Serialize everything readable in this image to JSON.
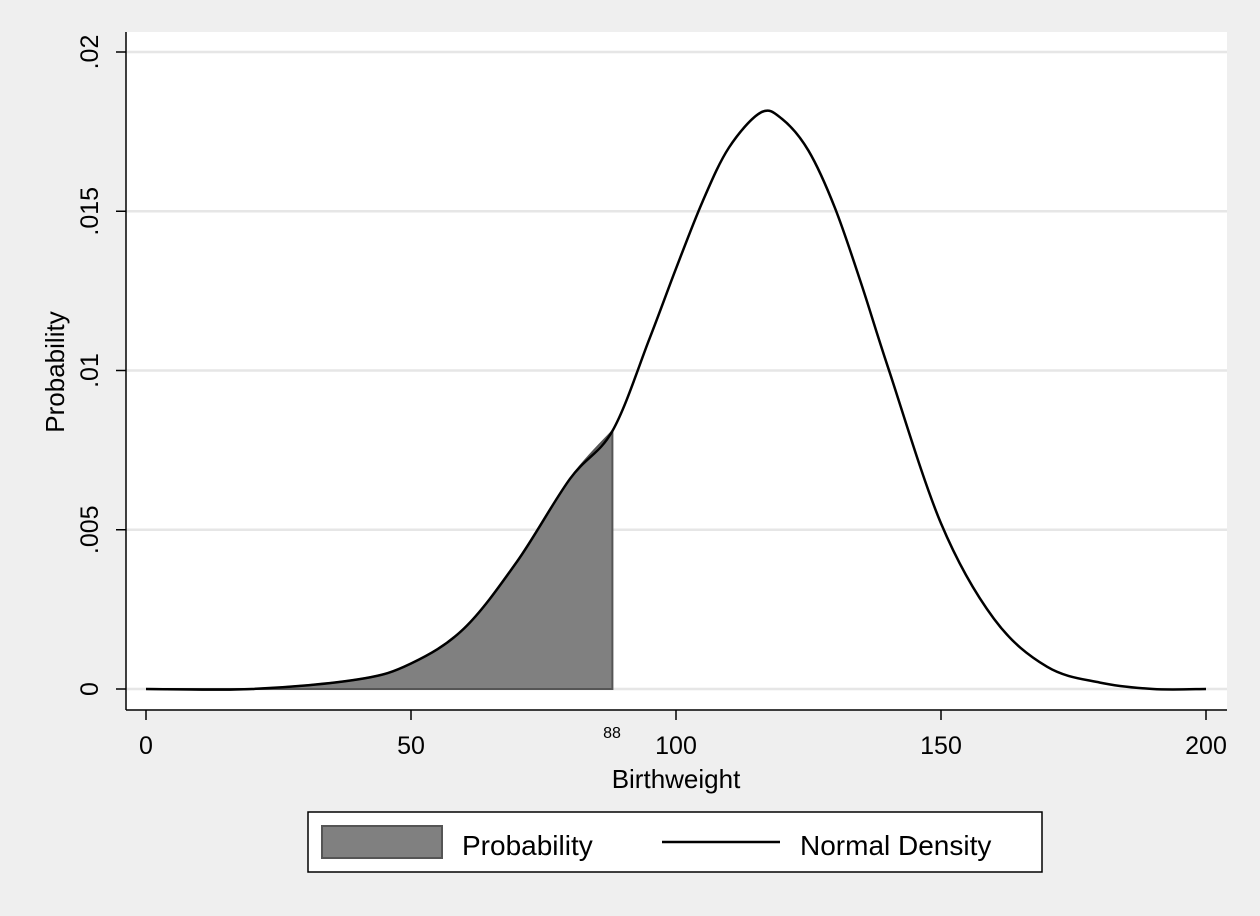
{
  "chart_data": {
    "type": "area",
    "title": "",
    "xlabel": "Birthweight",
    "ylabel": "Probability",
    "xlim": [
      0,
      200
    ],
    "ylim": [
      0,
      0.02
    ],
    "xticks": [
      0,
      50,
      100,
      150,
      200
    ],
    "xtick_labels": [
      "0",
      "50",
      "100",
      "150",
      "200"
    ],
    "yticks": [
      0,
      0.005,
      0.01,
      0.015,
      0.02
    ],
    "ytick_labels": [
      "0",
      ".005",
      ".01",
      ".015",
      ".02"
    ],
    "grid": "horizontal",
    "series": [
      {
        "name": "Probability",
        "kind": "shaded-area",
        "color": "#808080",
        "x_from": 0,
        "x_to": 88
      },
      {
        "name": "Normal Density",
        "kind": "line",
        "color": "#000000",
        "x": [
          0,
          20,
          40,
          50,
          60,
          70,
          80,
          88,
          95,
          100,
          105,
          110,
          116,
          120,
          125,
          130,
          135,
          140,
          150,
          160,
          170,
          180,
          190,
          200
        ],
        "y": [
          0.0,
          0.0,
          0.0003,
          0.0008,
          0.0019,
          0.004,
          0.0066,
          0.0081,
          0.011,
          0.0132,
          0.0153,
          0.017,
          0.0181,
          0.0179,
          0.0169,
          0.0151,
          0.0127,
          0.0101,
          0.0052,
          0.0022,
          0.0007,
          0.0002,
          0.0,
          0.0
        ]
      }
    ],
    "annotations": [
      {
        "text": "88",
        "x": 88
      }
    ],
    "legend": {
      "placement": "bottom",
      "items": [
        {
          "label": "Probability",
          "swatch": "box",
          "color": "#808080"
        },
        {
          "label": "Normal Density",
          "swatch": "line",
          "color": "#000000"
        }
      ]
    }
  }
}
